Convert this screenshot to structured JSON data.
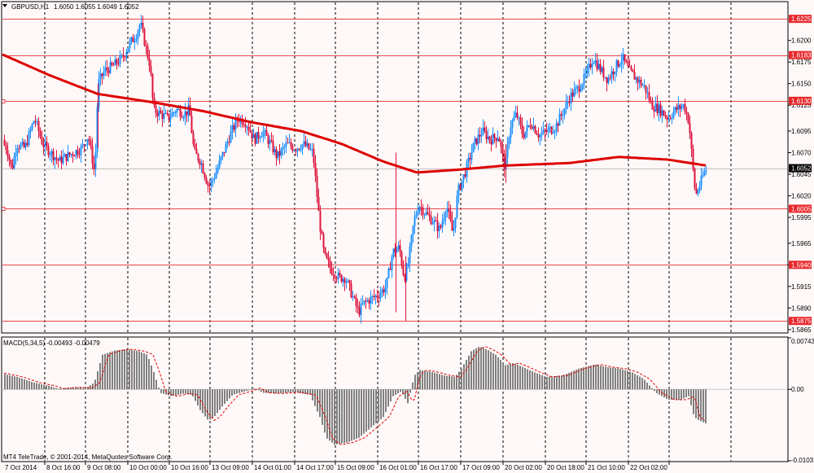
{
  "window": {
    "symbol_label": "GBPUSD,H1",
    "ohlc_text": "1.6050 1.6055 1.6049 1.6052",
    "dropdown_icon": "triangle-down-icon"
  },
  "colors": {
    "background": "#FFF8F8",
    "panel_border": "#000000",
    "bull_candle": "#1E90FF",
    "bear_candle": "#DC143C",
    "moving_average": "#DD0000",
    "level_line": "#E8484C",
    "level_badge": "#E8282C",
    "bid_line": "#C0C0C0",
    "macd_hist": "#808080",
    "macd_signal": "#E00000",
    "grid": "#000000"
  },
  "price_axis": {
    "ticks": [
      "1.6200",
      "1.6175",
      "1.6150",
      "1.6125",
      "1.6095",
      "1.6070",
      "1.6045",
      "1.6020",
      "1.5995",
      "1.5965",
      "1.5940",
      "1.5915",
      "1.5890",
      "1.5865"
    ],
    "ylim": [
      1.5862,
      1.6244
    ]
  },
  "levels": [
    {
      "price": 1.6225,
      "label": "1.6225"
    },
    {
      "price": 1.6183,
      "label": "1.6183"
    },
    {
      "price": 1.613,
      "label": "1.6130"
    },
    {
      "price": 1.6005,
      "label": "1.6005"
    },
    {
      "price": 1.594,
      "label": "1.5940"
    },
    {
      "price": 1.5875,
      "label": "1.5875"
    }
  ],
  "current_price": {
    "value": 1.6052,
    "label": "1.6052"
  },
  "time_axis": {
    "labels": [
      "7 Oct 2014",
      "8 Oct 16:00",
      "9 Oct 08:00",
      "10 Oct 00:00",
      "10 Oct 16:00",
      "13 Oct 09:00",
      "14 Oct 01:00",
      "14 Oct 17:00",
      "15 Oct 09:00",
      "16 Oct 01:00",
      "16 Oct 17:00",
      "17 Oct 09:00",
      "20 Oct 02:00",
      "20 Oct 18:00",
      "21 Oct 10:00",
      "22 Oct 02:00"
    ]
  },
  "macd": {
    "label": "MACD(5,34,5) -0.00493 -0.00479",
    "axis_ticks": [
      "0.00743",
      "0.00",
      "-0.01031"
    ],
    "ylim": [
      -0.01031,
      0.00743
    ]
  },
  "copyright": "MT4 TeleTrade, © 2001-2014, MetaQuotes Software Corp.",
  "chart_data": {
    "type": "candlestick",
    "title": "GBPUSD,H1",
    "price_keypoints": [
      [
        0,
        1.6085
      ],
      [
        8,
        1.6075
      ],
      [
        14,
        1.605
      ],
      [
        20,
        1.608
      ],
      [
        30,
        1.6075
      ],
      [
        42,
        1.611
      ],
      [
        52,
        1.608
      ],
      [
        62,
        1.607
      ],
      [
        72,
        1.606
      ],
      [
        80,
        1.6065
      ],
      [
        90,
        1.607
      ],
      [
        100,
        1.6075
      ],
      [
        108,
        1.609
      ],
      [
        116,
        1.6045
      ],
      [
        120,
        1.615
      ],
      [
        128,
        1.6165
      ],
      [
        138,
        1.617
      ],
      [
        150,
        1.618
      ],
      [
        158,
        1.6195
      ],
      [
        166,
        1.6205
      ],
      [
        172,
        1.622
      ],
      [
        178,
        1.6195
      ],
      [
        184,
        1.617
      ],
      [
        188,
        1.612
      ],
      [
        196,
        1.6115
      ],
      [
        206,
        1.611
      ],
      [
        216,
        1.612
      ],
      [
        226,
        1.6115
      ],
      [
        232,
        1.612
      ],
      [
        238,
        1.607
      ],
      [
        246,
        1.606
      ],
      [
        256,
        1.603
      ],
      [
        264,
        1.6045
      ],
      [
        272,
        1.6065
      ],
      [
        282,
        1.609
      ],
      [
        292,
        1.611
      ],
      [
        302,
        1.6105
      ],
      [
        312,
        1.6085
      ],
      [
        322,
        1.6095
      ],
      [
        332,
        1.608
      ],
      [
        340,
        1.6065
      ],
      [
        352,
        1.608
      ],
      [
        362,
        1.6075
      ],
      [
        372,
        1.608
      ],
      [
        384,
        1.607
      ],
      [
        392,
        1.599
      ],
      [
        398,
        1.595
      ],
      [
        406,
        1.5935
      ],
      [
        416,
        1.5925
      ],
      [
        424,
        1.5925
      ],
      [
        432,
        1.5905
      ],
      [
        440,
        1.5885
      ],
      [
        446,
        1.5895
      ],
      [
        454,
        1.59
      ],
      [
        464,
        1.5905
      ],
      [
        474,
        1.5915
      ],
      [
        482,
        1.5955
      ],
      [
        490,
        1.596
      ],
      [
        496,
        1.5925
      ],
      [
        500,
        1.5935
      ],
      [
        508,
        1.599
      ],
      [
        514,
        1.601
      ],
      [
        522,
        1.6
      ],
      [
        532,
        1.599
      ],
      [
        540,
        1.598
      ],
      [
        548,
        1.601
      ],
      [
        556,
        1.5975
      ],
      [
        562,
        1.6025
      ],
      [
        572,
        1.605
      ],
      [
        582,
        1.608
      ],
      [
        592,
        1.6095
      ],
      [
        602,
        1.6085
      ],
      [
        612,
        1.609
      ],
      [
        620,
        1.605
      ],
      [
        626,
        1.61
      ],
      [
        634,
        1.6115
      ],
      [
        642,
        1.609
      ],
      [
        652,
        1.6105
      ],
      [
        662,
        1.609
      ],
      [
        672,
        1.6095
      ],
      [
        682,
        1.61
      ],
      [
        690,
        1.6115
      ],
      [
        700,
        1.6135
      ],
      [
        710,
        1.6145
      ],
      [
        720,
        1.616
      ],
      [
        728,
        1.618
      ],
      [
        738,
        1.6165
      ],
      [
        746,
        1.6155
      ],
      [
        756,
        1.617
      ],
      [
        764,
        1.618
      ],
      [
        772,
        1.6165
      ],
      [
        782,
        1.6155
      ],
      [
        792,
        1.6145
      ],
      [
        800,
        1.6125
      ],
      [
        810,
        1.612
      ],
      [
        820,
        1.611
      ],
      [
        830,
        1.612
      ],
      [
        840,
        1.6125
      ],
      [
        846,
        1.6105
      ],
      [
        850,
        1.606
      ],
      [
        854,
        1.602
      ],
      [
        858,
        1.603
      ],
      [
        864,
        1.6045
      ],
      [
        868,
        1.6052
      ]
    ],
    "ma_keypoints": [
      [
        0,
        1.6185
      ],
      [
        60,
        1.616
      ],
      [
        120,
        1.6138
      ],
      [
        190,
        1.6128
      ],
      [
        250,
        1.6118
      ],
      [
        310,
        1.6105
      ],
      [
        370,
        1.6095
      ],
      [
        420,
        1.608
      ],
      [
        470,
        1.606
      ],
      [
        512,
        1.6047
      ],
      [
        560,
        1.605
      ],
      [
        620,
        1.6055
      ],
      [
        700,
        1.6058
      ],
      [
        760,
        1.6065
      ],
      [
        820,
        1.6062
      ],
      [
        868,
        1.6055
      ]
    ],
    "macd_keypoints": [
      [
        0,
        0.0023
      ],
      [
        20,
        0.0018
      ],
      [
        40,
        0.001
      ],
      [
        60,
        0.0005
      ],
      [
        70,
        0.0001
      ],
      [
        90,
        0.0003
      ],
      [
        105,
        0.0002
      ],
      [
        115,
        0.001
      ],
      [
        125,
        0.005
      ],
      [
        140,
        0.0056
      ],
      [
        155,
        0.0058
      ],
      [
        170,
        0.0055
      ],
      [
        180,
        0.005
      ],
      [
        188,
        0.0025
      ],
      [
        196,
        -0.0005
      ],
      [
        210,
        -0.001
      ],
      [
        225,
        -0.0006
      ],
      [
        235,
        -0.0008
      ],
      [
        245,
        -0.003
      ],
      [
        255,
        -0.0045
      ],
      [
        262,
        -0.004
      ],
      [
        272,
        -0.0025
      ],
      [
        285,
        -0.0008
      ],
      [
        300,
        -0.0003
      ],
      [
        312,
        0.0002
      ],
      [
        322,
        -0.0005
      ],
      [
        340,
        -0.0006
      ],
      [
        360,
        -0.0004
      ],
      [
        380,
        -0.0008
      ],
      [
        392,
        -0.004
      ],
      [
        400,
        -0.007
      ],
      [
        410,
        -0.008
      ],
      [
        425,
        -0.0077
      ],
      [
        440,
        -0.007
      ],
      [
        455,
        -0.0055
      ],
      [
        470,
        -0.004
      ],
      [
        482,
        -0.001
      ],
      [
        492,
        -0.0003
      ],
      [
        500,
        -0.002
      ],
      [
        508,
        0.002
      ],
      [
        515,
        0.0028
      ],
      [
        530,
        0.0025
      ],
      [
        545,
        0.002
      ],
      [
        558,
        0.0018
      ],
      [
        566,
        0.003
      ],
      [
        578,
        0.0055
      ],
      [
        588,
        0.0062
      ],
      [
        598,
        0.0057
      ],
      [
        608,
        0.005
      ],
      [
        620,
        0.0035
      ],
      [
        630,
        0.0038
      ],
      [
        642,
        0.0032
      ],
      [
        655,
        0.0025
      ],
      [
        670,
        0.0018
      ],
      [
        690,
        0.002
      ],
      [
        710,
        0.003
      ],
      [
        730,
        0.0036
      ],
      [
        745,
        0.0032
      ],
      [
        760,
        0.003
      ],
      [
        775,
        0.0025
      ],
      [
        790,
        0.0015
      ],
      [
        805,
        -0.0005
      ],
      [
        820,
        -0.0015
      ],
      [
        835,
        -0.0015
      ],
      [
        845,
        -0.001
      ],
      [
        852,
        -0.004
      ],
      [
        858,
        -0.0045
      ],
      [
        866,
        -0.0049
      ]
    ]
  }
}
